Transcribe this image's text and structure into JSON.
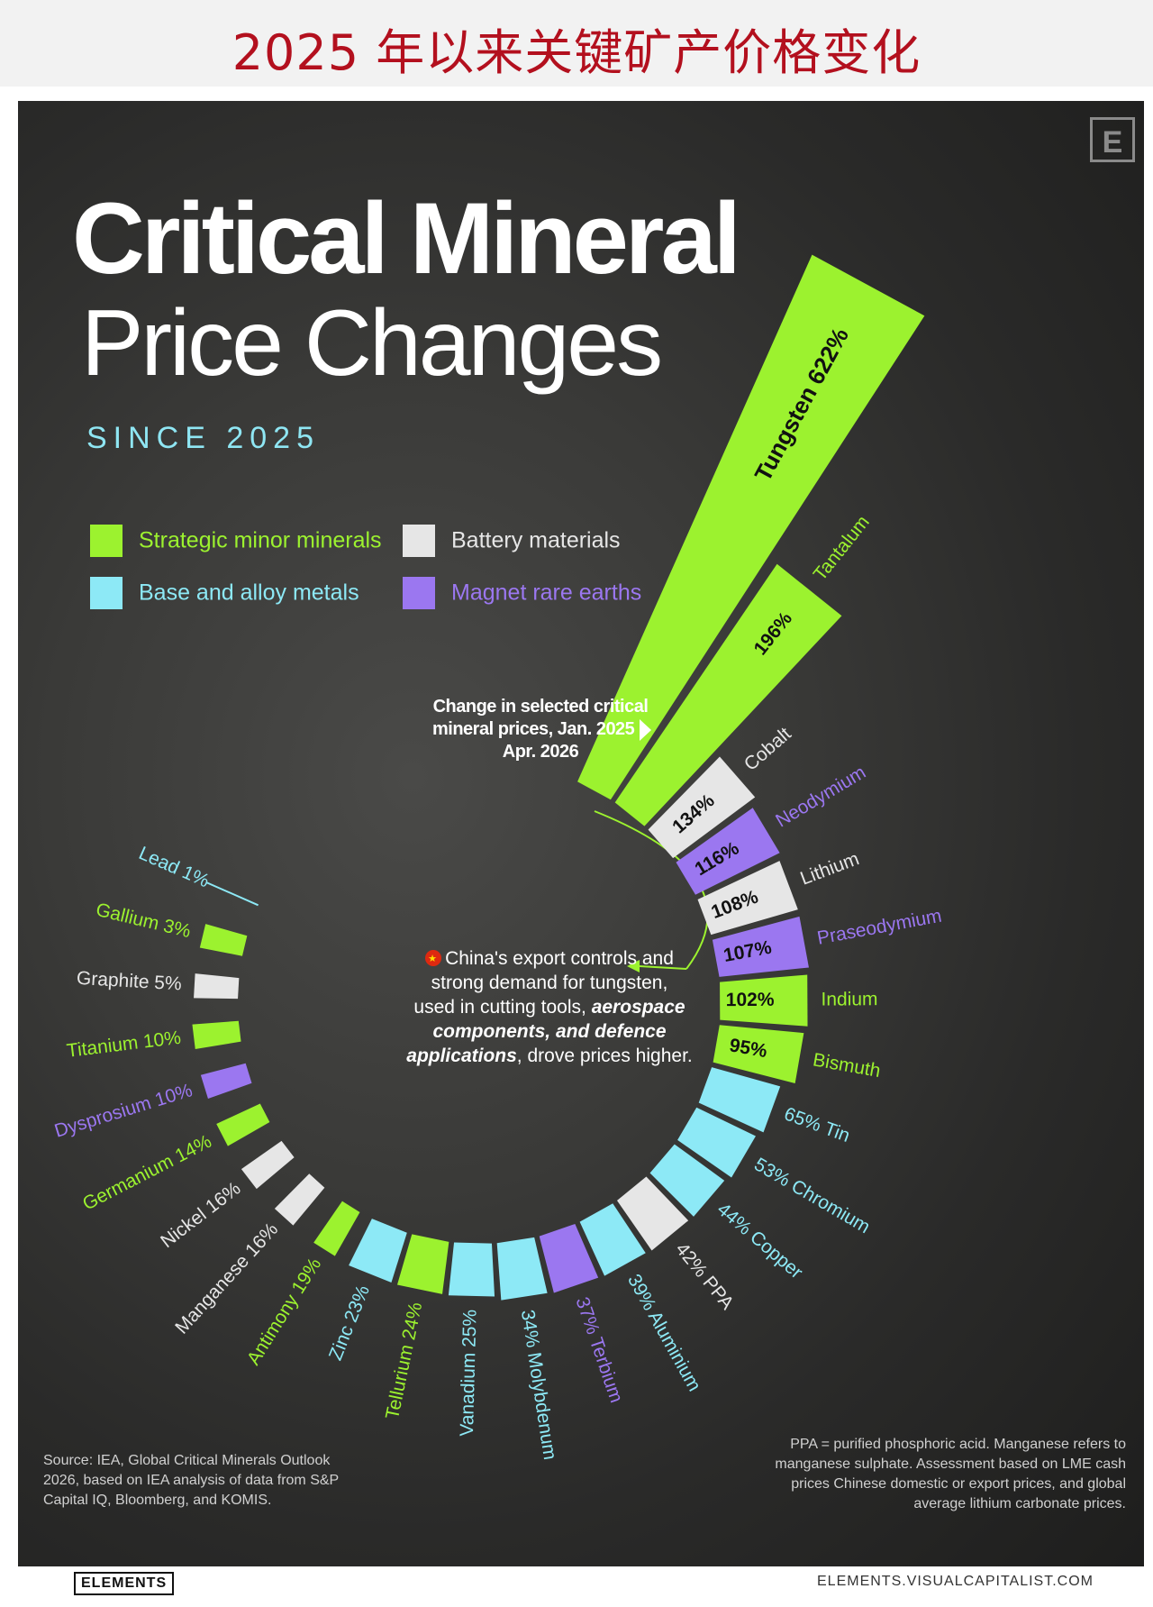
{
  "banner": {
    "title": "2025 年以来关键矿产价格变化"
  },
  "header": {
    "logo_letter": "E",
    "title_line1": "Critical Mineral",
    "title_line2": "Price Changes",
    "subtitle": "SINCE 2025"
  },
  "colors": {
    "strategic": "#9cf22f",
    "battery": "#e6e6e6",
    "base": "#8de9f6",
    "magnet": "#9b77f0",
    "lead_line": "#8de9f6"
  },
  "legend": [
    {
      "label": "Strategic minor minerals",
      "category": "strategic"
    },
    {
      "label": "Battery materials",
      "category": "battery"
    },
    {
      "label": "Base and alloy metals",
      "category": "base"
    },
    {
      "label": "Magnet rare earths",
      "category": "magnet"
    }
  ],
  "callouts": {
    "chart_note": "Change in selected critical mineral prices, Jan. 2025 – Apr. 2026",
    "china_line1": "China's export controls and",
    "china_line2": "strong demand for tungsten,",
    "china_line3a": "used in cutting tools, ",
    "china_line3b": "aerospace",
    "china_line4": "components, and defence",
    "china_line5a": "applications",
    "china_line5b": ", drove prices higher."
  },
  "source": "Source: IEA, Global Critical Minerals Outlook 2026, based on IEA analysis of data from S&P Capital IQ, Bloomberg, and KOMIS.",
  "footnote": "PPA = purified phosphoric acid. Manganese refers to manganese sulphate. Assessment based on LME cash prices Chinese domestic or export prices, and global average lithium carbonate prices.",
  "brand": {
    "left": "ELEMENTS",
    "right": "ELEMENTS.VISUALCAPITALIST.COM"
  },
  "chart_data": {
    "type": "bar",
    "title": "Change in selected critical mineral prices, Jan. 2025 – Apr. 2026",
    "unit": "%",
    "categories": [
      "Tungsten",
      "Tantalum",
      "Cobalt",
      "Neodymium",
      "Lithium",
      "Praseodymium",
      "Indium",
      "Bismuth",
      "Tin",
      "Chromium",
      "Copper",
      "PPA",
      "Aluminium",
      "Terbium",
      "Molybdenum",
      "Vanadium",
      "Tellurium",
      "Zinc",
      "Antimony",
      "Manganese",
      "Nickel",
      "Germanium",
      "Dysprosium",
      "Titanium",
      "Graphite",
      "Gallium",
      "Lead"
    ],
    "values": [
      622,
      196,
      134,
      116,
      108,
      107,
      102,
      95,
      65,
      53,
      44,
      42,
      39,
      37,
      34,
      25,
      24,
      23,
      19,
      16,
      16,
      14,
      10,
      10,
      5,
      3,
      1
    ],
    "groups": [
      "strategic",
      "strategic",
      "battery",
      "magnet",
      "battery",
      "magnet",
      "strategic",
      "strategic",
      "base",
      "base",
      "base",
      "battery",
      "base",
      "magnet",
      "base",
      "base",
      "strategic",
      "base",
      "strategic",
      "battery",
      "battery",
      "strategic",
      "magnet",
      "strategic",
      "battery",
      "strategic",
      "base"
    ],
    "labels": [
      "Tungsten 622%",
      "196%",
      "134%",
      "116%",
      "108%",
      "107%",
      "102%",
      "95%",
      "65%",
      "53%",
      "44%",
      "42%",
      "39%",
      "37%",
      "34%",
      "25%",
      "24%",
      "23%",
      "19%",
      "16%",
      "16%",
      "14%",
      "10%",
      "10%",
      "5%",
      "3%",
      "1%"
    ]
  }
}
